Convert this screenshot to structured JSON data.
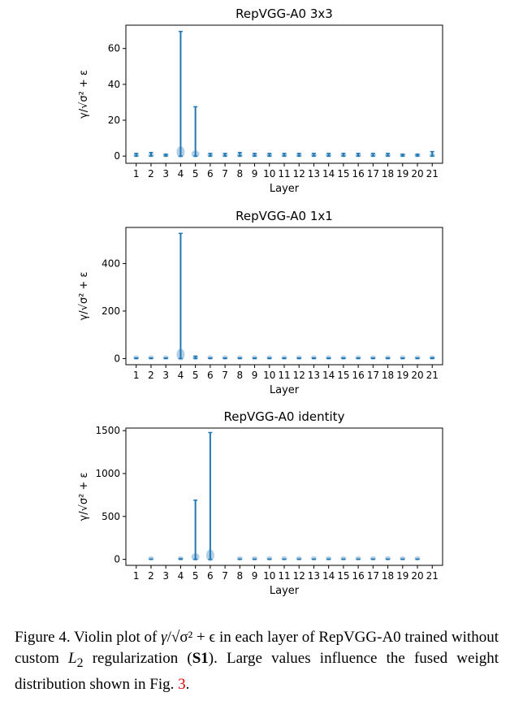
{
  "chart_data": [
    {
      "type": "violin",
      "title": "RepVGG-A0 3x3",
      "xlabel": "Layer",
      "ylabel": "γ/√σ² + ε",
      "categories": [
        "1",
        "2",
        "3",
        "4",
        "5",
        "6",
        "7",
        "8",
        "9",
        "10",
        "11",
        "12",
        "13",
        "14",
        "15",
        "16",
        "17",
        "18",
        "19",
        "20",
        "21"
      ],
      "max": [
        1.5,
        2.0,
        1.0,
        69.5,
        27.5,
        1.5,
        1.5,
        2.0,
        1.5,
        1.5,
        1.5,
        1.5,
        1.5,
        1.5,
        1.5,
        1.5,
        1.5,
        1.5,
        1.0,
        1.0,
        2.5
      ],
      "min": [
        0,
        0,
        0,
        0,
        0,
        0,
        0,
        0,
        0,
        0,
        0,
        0,
        0,
        0,
        0,
        0,
        0,
        0,
        0,
        0,
        0
      ],
      "yticks": [
        0,
        20,
        40,
        60
      ],
      "ylim": [
        -4,
        73
      ],
      "xlim": [
        0.3,
        21.7
      ]
    },
    {
      "type": "violin",
      "title": "RepVGG-A0 1x1",
      "xlabel": "Layer",
      "ylabel": "γ/√σ² + ε",
      "categories": [
        "1",
        "2",
        "3",
        "4",
        "5",
        "6",
        "7",
        "8",
        "9",
        "10",
        "11",
        "12",
        "13",
        "14",
        "15",
        "16",
        "17",
        "18",
        "19",
        "20",
        "21"
      ],
      "max": [
        2,
        2,
        2,
        527,
        10,
        2,
        2,
        2,
        2,
        2,
        2,
        2,
        2,
        2,
        2,
        2,
        2,
        2,
        2,
        2,
        3
      ],
      "min": [
        0,
        0,
        0,
        0,
        0,
        0,
        0,
        0,
        0,
        0,
        0,
        0,
        0,
        0,
        0,
        0,
        0,
        0,
        0,
        0,
        0
      ],
      "yticks": [
        0,
        200,
        400
      ],
      "ylim": [
        -26,
        552
      ],
      "xlim": [
        0.3,
        21.7
      ]
    },
    {
      "type": "violin",
      "title": "RepVGG-A0 identity",
      "xlabel": "Layer",
      "ylabel": "γ/√σ² + ε",
      "categories": [
        "1",
        "2",
        "3",
        "4",
        "5",
        "6",
        "7",
        "8",
        "9",
        "10",
        "11",
        "12",
        "13",
        "14",
        "15",
        "16",
        "17",
        "18",
        "19",
        "20",
        "21"
      ],
      "present": [
        2,
        4,
        5,
        6,
        8,
        9,
        10,
        11,
        12,
        13,
        14,
        15,
        16,
        17,
        18,
        19,
        20
      ],
      "max_by_layer": {
        "2": 2,
        "4": 6,
        "5": 690,
        "6": 1478,
        "8": 2,
        "9": 2,
        "10": 2,
        "11": 2,
        "12": 2,
        "13": 2,
        "14": 2,
        "15": 2,
        "16": 2,
        "17": 2,
        "18": 2,
        "19": 2,
        "20": 2
      },
      "yticks": [
        0,
        500,
        1000,
        1500
      ],
      "ylim": [
        -70,
        1530
      ],
      "xlim": [
        0.3,
        21.7
      ]
    }
  ],
  "caption": {
    "prefix": "Figure 4.  Violin plot of ",
    "math_gamma": "γ",
    "math_rest": "/√σ² + ϵ",
    "mid1": " in each layer of RepVGG-A0 trained without custom ",
    "math_l2": "L",
    "math_l2_sub": "2",
    "mid2": " regularization (",
    "bold_ref": "S1",
    "mid3": ").  Large values influence the fused weight distribution shown in Fig. ",
    "fig_ref": "3",
    "suffix": "."
  },
  "colors": {
    "line": "#1f77b4",
    "body": "#9fc3df"
  }
}
